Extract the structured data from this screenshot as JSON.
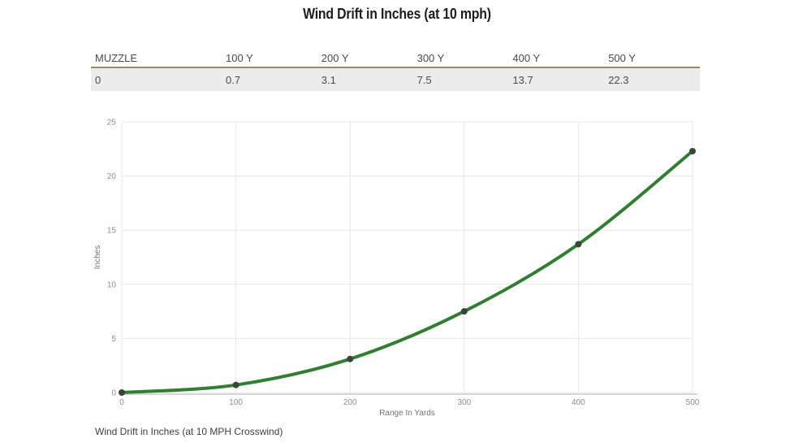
{
  "page": {
    "title": "Wind Drift in Inches (at 10 mph)",
    "caption": "Wind Drift in Inches (at 10 MPH Crosswind)"
  },
  "table": {
    "headers": [
      "MUZZLE",
      "100 Y",
      "200 Y",
      "300 Y",
      "400 Y",
      "500 Y"
    ],
    "values": [
      "0",
      "0.7",
      "3.1",
      "7.5",
      "13.7",
      "22.3"
    ],
    "header_border_color": "#9a8b63",
    "row_bg": "#ececec"
  },
  "chart_data": {
    "type": "line",
    "title": "",
    "x": [
      0,
      100,
      200,
      300,
      400,
      500
    ],
    "series": [
      {
        "name": "Wind Drift",
        "values": [
          0,
          0.7,
          3.1,
          7.5,
          13.7,
          22.3
        ]
      }
    ],
    "xlabel": "Range In Yards",
    "ylabel": "Inches",
    "xlim": [
      0,
      500
    ],
    "ylim": [
      0,
      25
    ],
    "x_ticks": [
      0,
      100,
      200,
      300,
      400,
      500
    ],
    "y_ticks": [
      0,
      5,
      10,
      15,
      20,
      25
    ],
    "grid": true,
    "legend_position": "none",
    "line_color": "#317d31",
    "marker_color": "#3a453a",
    "grid_color": "#e7e7e7",
    "axis_line_color": "#d6d6d6",
    "tick_label_color": "#8d8d8d",
    "axis_title_color": "#757575"
  }
}
